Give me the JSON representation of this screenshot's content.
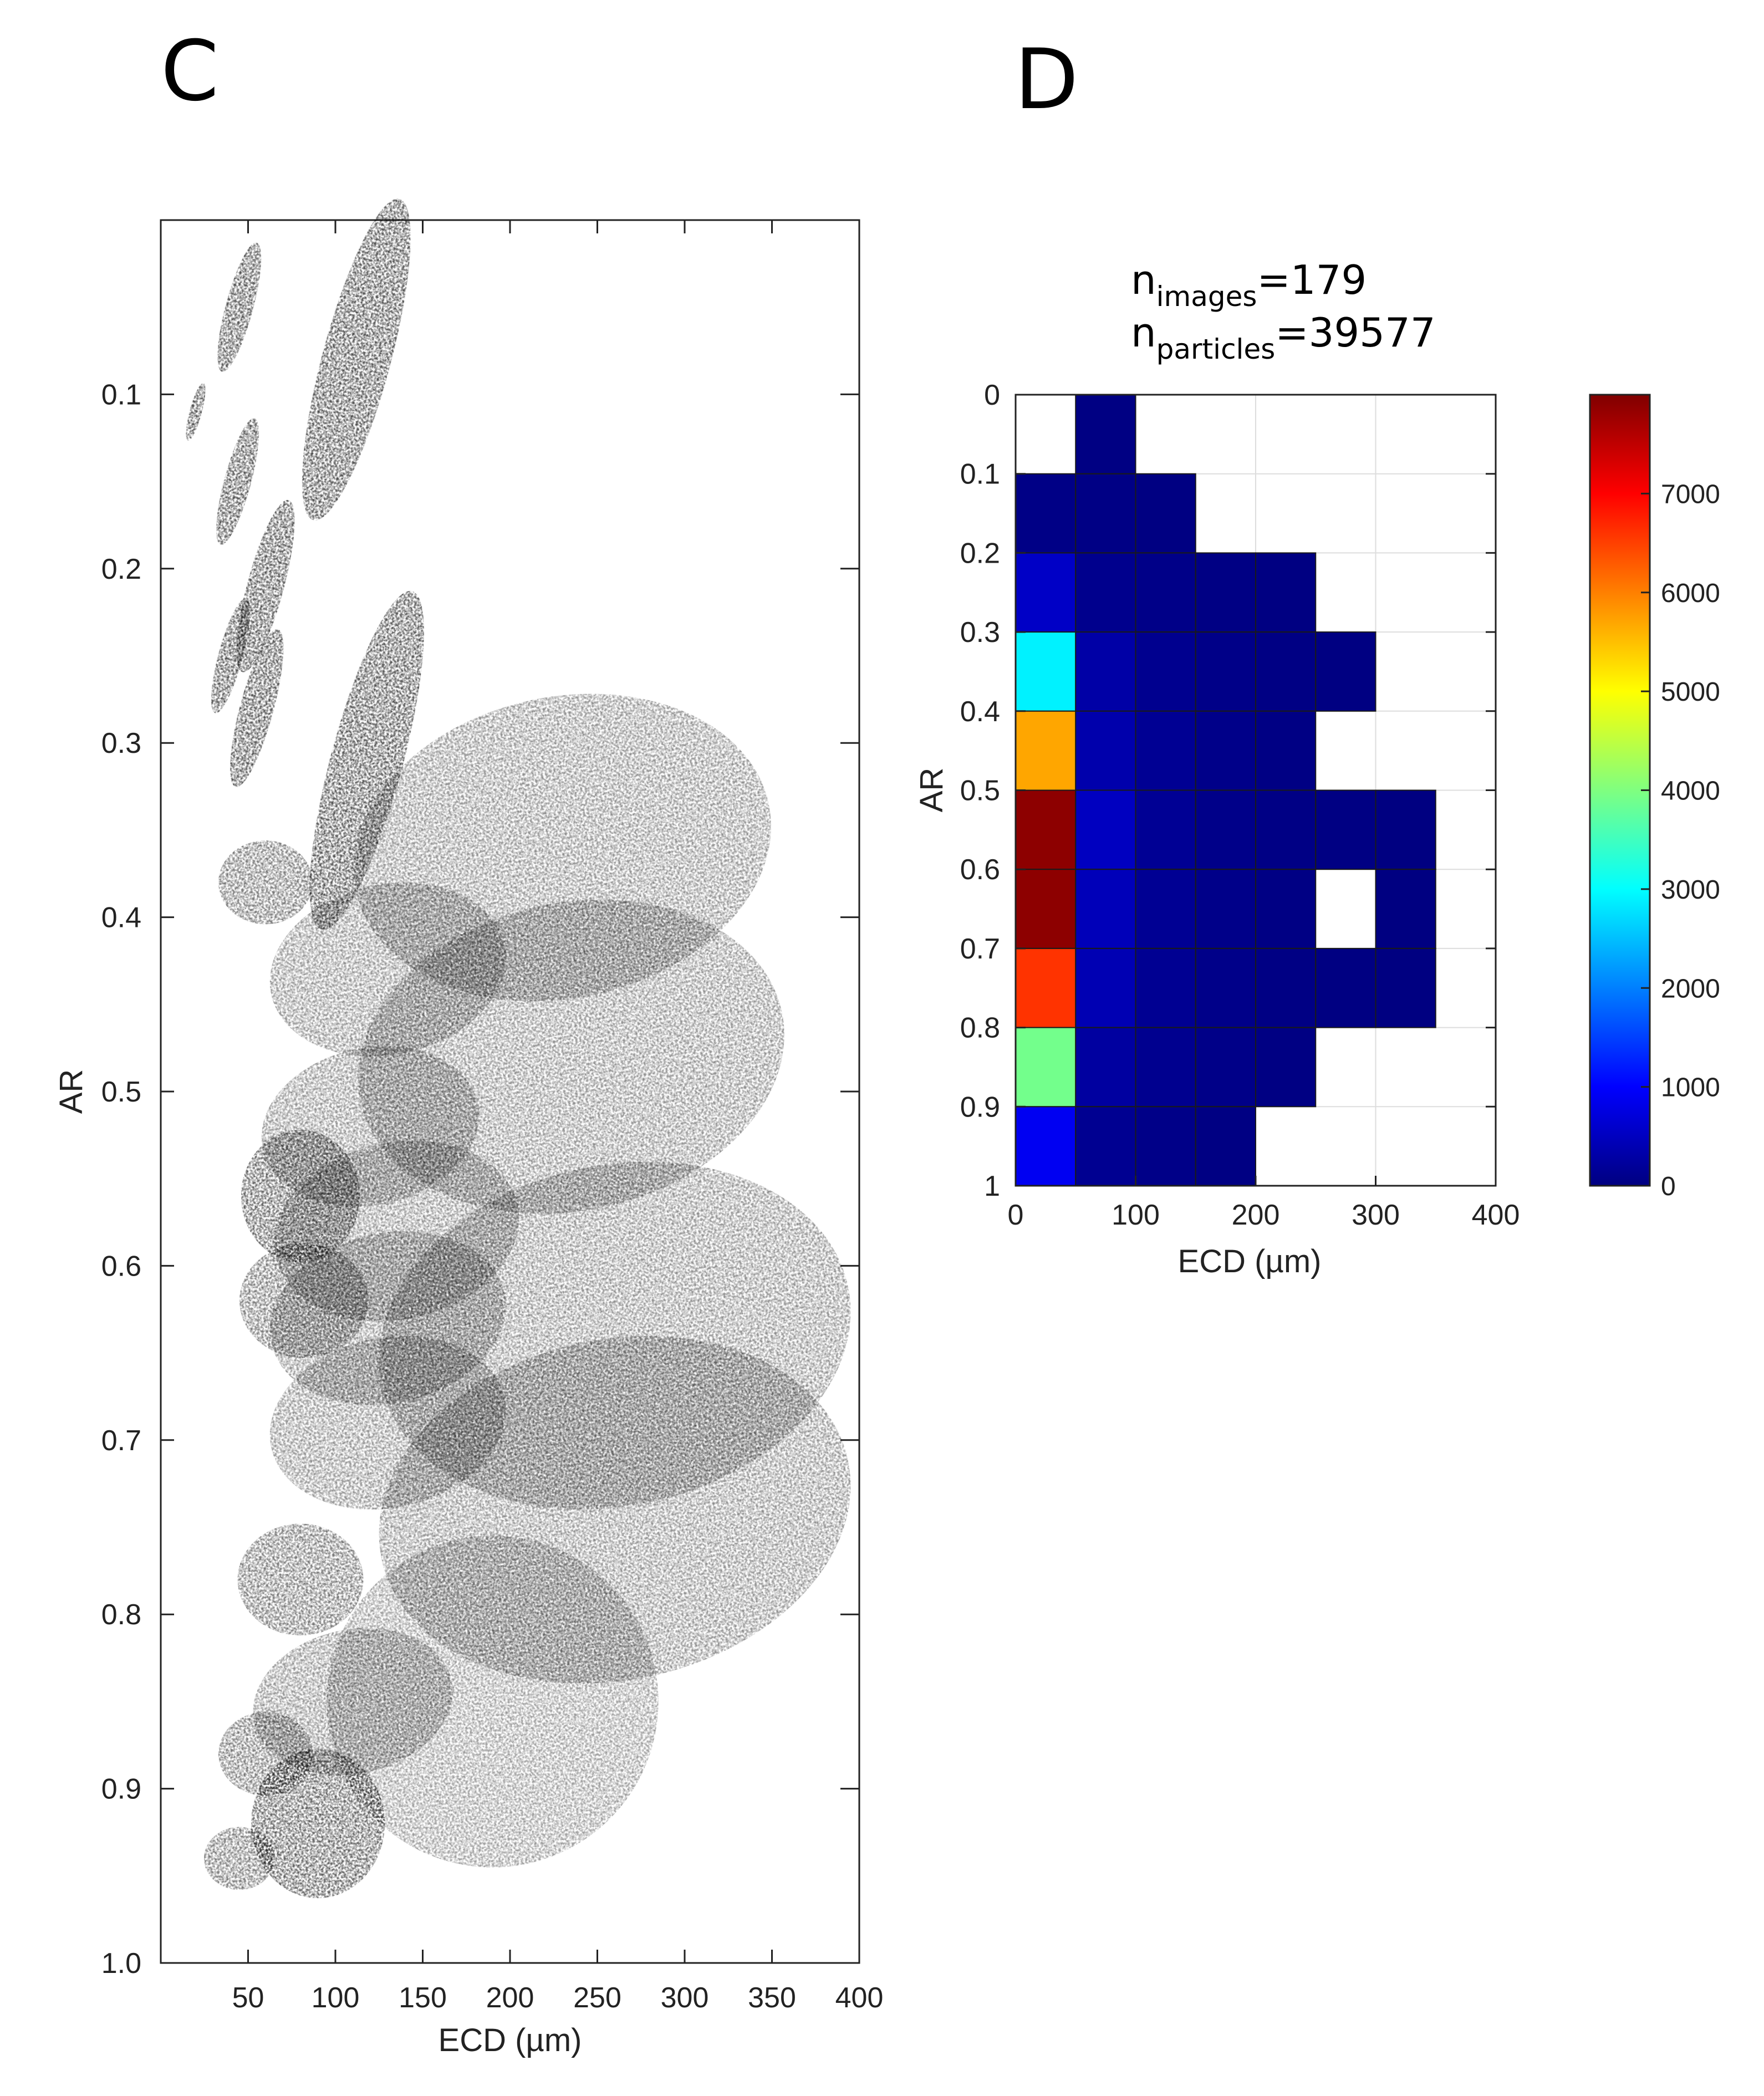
{
  "panels": {
    "c_letter": "C",
    "d_letter": "D"
  },
  "chart_data": [
    {
      "type": "scatter",
      "panel": "C",
      "xlabel": "ECD (µm)",
      "ylabel": "AR",
      "xlim": [
        0,
        400
      ],
      "ylim": [
        0,
        1.0
      ],
      "y_reversed": true,
      "x_ticks": [
        50,
        100,
        150,
        200,
        250,
        300,
        350,
        400
      ],
      "y_ticks": [
        0.1,
        0.2,
        0.3,
        0.4,
        0.5,
        0.6,
        0.7,
        0.8,
        0.9,
        1.0
      ],
      "y_tick_labels": [
        "0.1",
        "0.2",
        "0.3",
        "0.4",
        "0.5",
        "0.6",
        "0.7",
        "0.8",
        "0.9",
        "1.0"
      ],
      "marker": "grayscale particle images",
      "points": [
        {
          "x": 45,
          "y": 0.05,
          "shape": "elongated"
        },
        {
          "x": 112,
          "y": 0.08,
          "shape": "elongated"
        },
        {
          "x": 20,
          "y": 0.11,
          "shape": "elongated"
        },
        {
          "x": 44,
          "y": 0.15,
          "shape": "elongated"
        },
        {
          "x": 60,
          "y": 0.21,
          "shape": "elongated"
        },
        {
          "x": 40,
          "y": 0.25,
          "shape": "elongated"
        },
        {
          "x": 55,
          "y": 0.28,
          "shape": "elongated"
        },
        {
          "x": 118,
          "y": 0.31,
          "shape": "elongated"
        },
        {
          "x": 230,
          "y": 0.36,
          "shape": "aggregate"
        },
        {
          "x": 60,
          "y": 0.38,
          "shape": "small"
        },
        {
          "x": 130,
          "y": 0.43,
          "shape": "aggregate"
        },
        {
          "x": 235,
          "y": 0.48,
          "shape": "aggregate"
        },
        {
          "x": 120,
          "y": 0.52,
          "shape": "aggregate"
        },
        {
          "x": 80,
          "y": 0.56,
          "shape": "compact"
        },
        {
          "x": 135,
          "y": 0.58,
          "shape": "aggregate"
        },
        {
          "x": 82,
          "y": 0.62,
          "shape": "small"
        },
        {
          "x": 130,
          "y": 0.63,
          "shape": "aggregate"
        },
        {
          "x": 260,
          "y": 0.64,
          "shape": "aggregate"
        },
        {
          "x": 130,
          "y": 0.69,
          "shape": "aggregate"
        },
        {
          "x": 260,
          "y": 0.74,
          "shape": "aggregate"
        },
        {
          "x": 80,
          "y": 0.78,
          "shape": "small"
        },
        {
          "x": 110,
          "y": 0.85,
          "shape": "aggregate"
        },
        {
          "x": 190,
          "y": 0.85,
          "shape": "rounded"
        },
        {
          "x": 60,
          "y": 0.88,
          "shape": "small"
        },
        {
          "x": 90,
          "y": 0.92,
          "shape": "compact"
        },
        {
          "x": 45,
          "y": 0.94,
          "shape": "small"
        }
      ]
    },
    {
      "type": "heatmap",
      "panel": "D",
      "annotation": {
        "n1_base": "n",
        "n1_sub": "images",
        "n1_value": "=179",
        "n2_base": "n",
        "n2_sub": "particles",
        "n2_value": "=39577"
      },
      "xlabel": "ECD (µm)",
      "ylabel": "AR",
      "xlim": [
        0,
        400
      ],
      "ylim": [
        0,
        1
      ],
      "y_reversed": true,
      "grid": true,
      "x_ticks": [
        0,
        100,
        200,
        300,
        400
      ],
      "y_ticks": [
        0,
        0.1,
        0.2,
        0.3,
        0.4,
        0.5,
        0.6,
        0.7,
        0.8,
        0.9,
        1
      ],
      "y_tick_labels": [
        "0",
        "0.1",
        "0.2",
        "0.3",
        "0.4",
        "0.5",
        "0.6",
        "0.7",
        "0.8",
        "0.9",
        "1"
      ],
      "x_bin_edges": [
        0,
        50,
        100,
        150,
        200,
        250,
        300,
        350,
        400
      ],
      "y_bin_edges": [
        0,
        0.1,
        0.2,
        0.3,
        0.4,
        0.5,
        0.6,
        0.7,
        0.8,
        0.9,
        1.0
      ],
      "colormap": "jet",
      "clim": [
        0,
        8000
      ],
      "colorbar_ticks": [
        0,
        1000,
        2000,
        3000,
        4000,
        5000,
        6000,
        7000
      ],
      "colorbar_tick_labels": [
        "0",
        "1000",
        "2000",
        "3000",
        "4000",
        "5000",
        "6000",
        "7000"
      ],
      "counts": [
        [
          null,
          20,
          null,
          null,
          null,
          null,
          null,
          null
        ],
        [
          50,
          40,
          15,
          null,
          null,
          null,
          null,
          null
        ],
        [
          550,
          100,
          60,
          30,
          15,
          null,
          null,
          null
        ],
        [
          2900,
          300,
          120,
          60,
          30,
          15,
          null,
          null
        ],
        [
          5700,
          350,
          150,
          70,
          30,
          null,
          null,
          null
        ],
        [
          7900,
          500,
          160,
          70,
          40,
          20,
          10,
          null
        ],
        [
          7900,
          450,
          150,
          70,
          30,
          null,
          10,
          null
        ],
        [
          6600,
          400,
          140,
          70,
          30,
          15,
          10,
          null
        ],
        [
          3900,
          250,
          120,
          60,
          20,
          null,
          null,
          null
        ],
        [
          900,
          130,
          60,
          20,
          null,
          null,
          null,
          null
        ]
      ]
    }
  ]
}
